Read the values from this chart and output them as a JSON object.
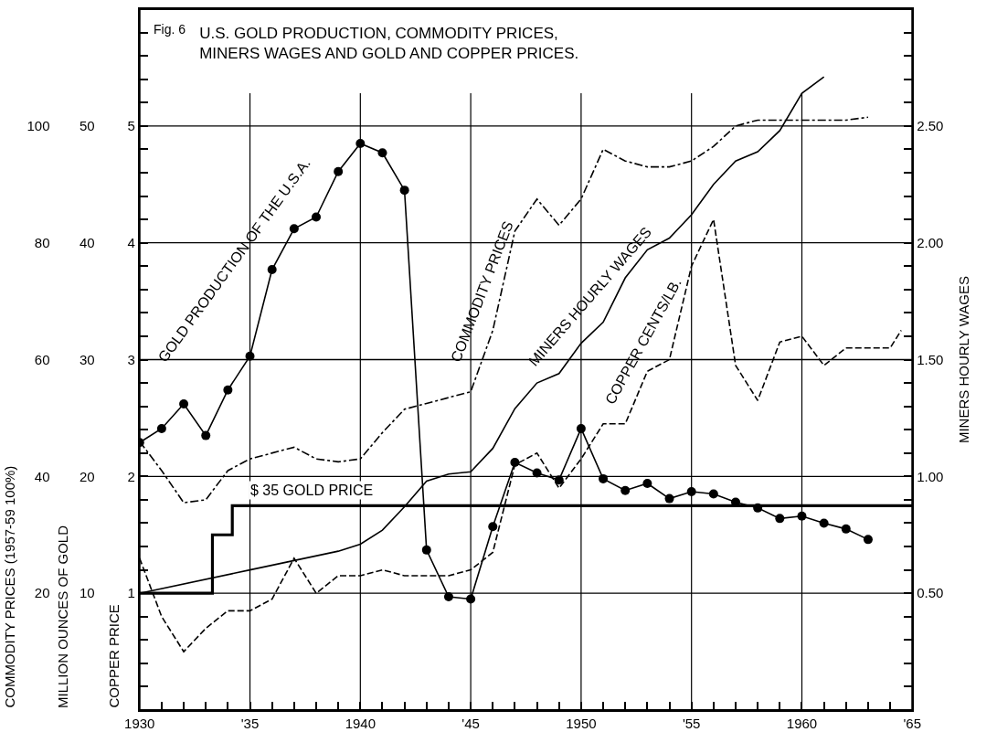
{
  "chart_data": [
    {
      "type": "line",
      "title": "U.S. GOLD PRODUCTION, COMMODITY PRICES, MINERS WAGES AND GOLD AND COPPER PRICES.",
      "ylabel": "MILLION OUNCES OF GOLD",
      "y2label": "MINERS HOURLY WAGES",
      "y3label": "COPPER PRICE",
      "annotations": [
        "Fig. 6",
        "GOLD PRODUCTION OF THE U.S.A.",
        "COMMODITY PRICES",
        "MINERS HOURLY WAGES",
        "COPPER CENTS/LB.",
        "$ 35 GOLD PRICE"
      ],
      "xlim": [
        1930,
        1965
      ],
      "xticks": [
        1930,
        {
          "value": 1931,
          "label": null
        },
        {
          "value": 1932,
          "label": null
        },
        {
          "value": 1933,
          "label": null
        },
        {
          "value": 1934,
          "label": null
        },
        {
          "value": 1935,
          "label": "'35"
        },
        {
          "value": 1936,
          "label": null
        },
        {
          "value": 1937,
          "label": null
        },
        {
          "value": 1938,
          "label": null
        },
        {
          "value": 1939,
          "label": null
        },
        1940,
        {
          "value": 1941,
          "label": null
        },
        {
          "value": 1942,
          "label": null
        },
        {
          "value": 1943,
          "label": null
        },
        {
          "value": 1944,
          "label": null
        },
        {
          "value": 1945,
          "label": "'45"
        },
        {
          "value": 1946,
          "label": null
        },
        {
          "value": 1947,
          "label": null
        },
        {
          "value": 1948,
          "label": null
        },
        {
          "value": 1949,
          "label": null
        },
        1950,
        {
          "value": 1951,
          "label": null
        },
        {
          "value": 1952,
          "label": null
        },
        {
          "value": 1953,
          "label": null
        },
        {
          "value": 1954,
          "label": null
        },
        {
          "value": 1955,
          "label": "'55"
        },
        {
          "value": 1956,
          "label": null
        },
        {
          "value": 1957,
          "label": null
        },
        {
          "value": 1958,
          "label": null
        },
        {
          "value": 1959,
          "label": null
        },
        1960,
        {
          "value": 1961,
          "label": null
        },
        {
          "value": 1962,
          "label": null
        },
        {
          "value": 1963,
          "label": null
        },
        {
          "value": 1964,
          "label": null
        },
        {
          "value": 1965,
          "label": "'65"
        }
      ],
      "ylim": [
        0,
        6
      ],
      "yticks": [
        {
          "value": 0.2,
          "label": null
        },
        {
          "value": 0.4,
          "label": null
        },
        {
          "value": 0.6,
          "label": null
        },
        {
          "value": 0.8,
          "label": null
        },
        1,
        {
          "value": 1.2,
          "label": null
        },
        {
          "value": 1.4,
          "label": null
        },
        {
          "value": 1.6,
          "label": null
        },
        {
          "value": 1.8,
          "label": null
        },
        2,
        {
          "value": 2.2,
          "label": null
        },
        {
          "value": 2.4,
          "label": null
        },
        {
          "value": 2.6,
          "label": null
        },
        {
          "value": 2.8,
          "label": null
        },
        3,
        {
          "value": 3.2,
          "label": null
        },
        {
          "value": 3.4,
          "label": null
        },
        {
          "value": 3.6,
          "label": null
        },
        {
          "value": 3.8,
          "label": null
        },
        4,
        {
          "value": 4.2,
          "label": null
        },
        {
          "value": 4.4,
          "label": null
        },
        {
          "value": 4.6,
          "label": null
        },
        {
          "value": 4.8,
          "label": null
        },
        5,
        {
          "value": 5.2,
          "label": null
        },
        {
          "value": 5.4,
          "label": null
        },
        {
          "value": 5.6,
          "label": null
        },
        {
          "value": 5.8,
          "label": null
        }
      ],
      "y2lim": [
        0,
        3
      ],
      "y2ticks": [
        {
          "value": 0.1,
          "label": null
        },
        {
          "value": 0.2,
          "label": null
        },
        {
          "value": 0.3,
          "label": null
        },
        {
          "value": 0.4,
          "label": null
        },
        {
          "value": 0.5,
          "label": "0.50"
        },
        {
          "value": 0.6,
          "label": null
        },
        {
          "value": 0.7,
          "label": null
        },
        {
          "value": 0.8,
          "label": null
        },
        {
          "value": 0.9,
          "label": null
        },
        {
          "value": 1,
          "label": "1.00"
        },
        {
          "value": 1.1,
          "label": null
        },
        {
          "value": 1.2,
          "label": null
        },
        {
          "value": 1.3,
          "label": null
        },
        {
          "value": 1.4,
          "label": null
        },
        {
          "value": 1.5,
          "label": "1.50"
        },
        {
          "value": 1.6,
          "label": null
        },
        {
          "value": 1.7,
          "label": null
        },
        {
          "value": 1.8,
          "label": null
        },
        {
          "value": 1.9,
          "label": null
        },
        {
          "value": 2,
          "label": "2.00"
        },
        {
          "value": 2.1,
          "label": null
        },
        {
          "value": 2.2,
          "label": null
        },
        {
          "value": 2.3,
          "label": null
        },
        {
          "value": 2.4,
          "label": null
        },
        {
          "value": 2.5,
          "label": "2.50"
        },
        {
          "value": 2.6,
          "label": null
        },
        {
          "value": 2.7,
          "label": null
        },
        {
          "value": 2.8,
          "label": null
        },
        {
          "value": 2.9,
          "label": null
        }
      ],
      "y3lim": [
        0,
        60
      ],
      "y3ticks": [
        10,
        20,
        30,
        40,
        50
      ],
      "grid": true,
      "series": [
        {
          "color": "#000000",
          "marker": "circle",
          "line_style": "solid",
          "x": [
            1930,
            1931,
            1932,
            1933,
            1934,
            1935,
            1936,
            1937,
            1938,
            1939,
            1940,
            1941,
            1942,
            1943,
            1944,
            1945,
            1946,
            1947,
            1948,
            1949,
            1950,
            1951,
            1952,
            1953,
            1954,
            1955,
            1956,
            1957,
            1958,
            1959,
            1960,
            1961,
            1962,
            1963
          ],
          "values": [
            2.29,
            2.41,
            2.62,
            2.35,
            2.74,
            3.03,
            3.77,
            4.12,
            4.22,
            4.61,
            4.85,
            4.77,
            4.45,
            1.37,
            0.97,
            0.95,
            1.57,
            2.12,
            2.03,
            1.97,
            2.41,
            1.98,
            1.88,
            1.94,
            1.81,
            1.87,
            1.85,
            1.78,
            1.73,
            1.64,
            1.66,
            1.6,
            1.55,
            1.46
          ]
        },
        {
          "axis": "y2",
          "color": "#000000",
          "line_style": "solid",
          "x": [
            1930,
            1935,
            1937,
            1939,
            1940,
            1941,
            1942,
            1943,
            1944,
            1945,
            1946,
            1947,
            1948,
            1949,
            1950,
            1951,
            1952,
            1953,
            1954,
            1955,
            1956,
            1957,
            1958,
            1959,
            1960,
            1961
          ],
          "values": [
            0.5,
            0.6,
            0.64,
            0.68,
            0.71,
            0.77,
            0.87,
            0.98,
            1.01,
            1.02,
            1.12,
            1.29,
            1.4,
            1.44,
            1.57,
            1.66,
            1.85,
            1.97,
            2.02,
            2.12,
            2.25,
            2.35,
            2.39,
            2.48,
            2.64,
            2.71
          ]
        },
        {
          "axis": "y3",
          "color": "#000000",
          "line_style": "dashed",
          "x": [
            1930,
            1931,
            1932,
            1933,
            1934,
            1935,
            1936,
            1937,
            1938,
            1939,
            1940,
            1941,
            1942,
            1943,
            1944,
            1945,
            1946,
            1947,
            1948,
            1949,
            1950,
            1951,
            1952,
            1953,
            1954,
            1955,
            1956,
            1957,
            1958,
            1959,
            1960,
            1961,
            1962,
            1963,
            1964,
            1964.5
          ],
          "values": [
            13,
            8,
            5,
            7,
            8.5,
            8.5,
            9.5,
            13,
            10,
            11.5,
            11.5,
            12,
            11.5,
            11.5,
            11.5,
            12,
            13.5,
            21,
            22,
            19,
            21.5,
            24.5,
            24.5,
            29,
            30,
            38,
            42,
            29.5,
            26.5,
            31.5,
            32,
            29.5,
            31,
            31,
            31,
            32.5
          ]
        }
      ]
    },
    {
      "type": "line",
      "ylabel": "COMMODITY PRICES (1957-59 100%)",
      "xlim": [
        1930,
        1965
      ],
      "ylim": [
        0,
        120
      ],
      "yticks": [
        20,
        40,
        60,
        80,
        100
      ],
      "tick_labels": "y",
      "series": [
        {
          "color": "#000000",
          "line_style": "dashdot",
          "x": [
            1930,
            1931,
            1932,
            1933,
            1934,
            1935,
            1937,
            1938,
            1939,
            1940,
            1941,
            1942,
            1943,
            1944,
            1945,
            1946,
            1947,
            1948,
            1949,
            1950,
            1951,
            1952,
            1953,
            1954,
            1955,
            1956,
            1957,
            1958,
            1959,
            1960,
            1961,
            1962,
            1963
          ],
          "values": [
            46,
            41,
            35.5,
            36,
            41,
            43,
            45,
            43,
            42.5,
            43,
            47.5,
            51.5,
            52.5,
            53.5,
            54.5,
            65,
            82,
            87.5,
            83,
            87.5,
            96,
            94,
            93,
            93,
            94,
            96.5,
            100,
            101,
            101,
            101,
            101,
            101,
            101.5
          ]
        },
        {
          "type": "step",
          "color": "#000000",
          "line_style": "solid",
          "x": [
            1930,
            1933.3,
            1934.2,
            1965
          ],
          "values": [
            20,
            30,
            35,
            35
          ]
        }
      ]
    }
  ]
}
